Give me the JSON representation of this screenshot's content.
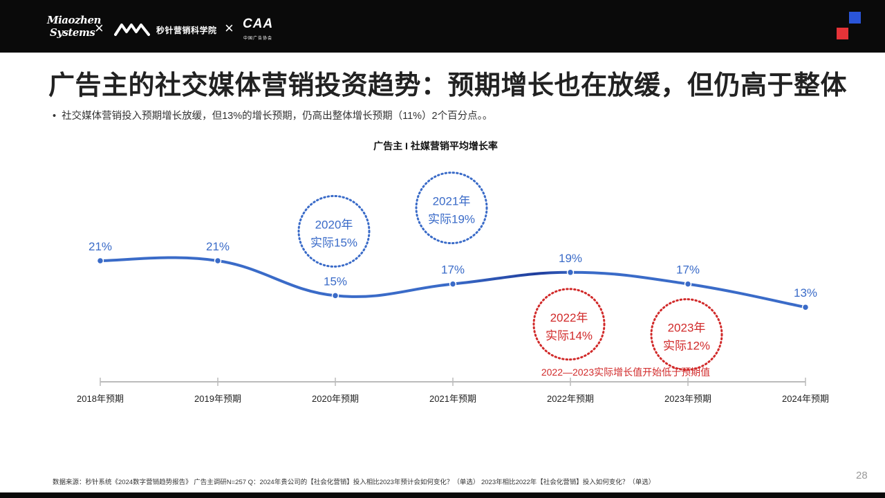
{
  "header": {
    "logo_miaozhen_line1": "Miaozhen",
    "logo_miaozhen_line2": "Systems",
    "separator": "×",
    "logo_academy": "秒针营销科学院",
    "logo_caa": "CAA",
    "logo_caa_sub": "中国广告协会"
  },
  "title": "广告主的社交媒体营销投资趋势：预期增长也在放缓，但仍高于整体",
  "bullet": {
    "marker": "•",
    "text": "社交媒体营销投入预期增长放缓，但13%的增长预期，仍高出整体增长预期（11%）2个百分点。。"
  },
  "chart_data": {
    "type": "line",
    "title": "广告主 I 社媒营销平均增长率",
    "categories": [
      "2018年预期",
      "2019年预期",
      "2020年预期",
      "2021年预期",
      "2022年预期",
      "2023年预期",
      "2024年预期"
    ],
    "series": [
      {
        "values": [
          21,
          21,
          15,
          17,
          19,
          17,
          13
        ],
        "labels": [
          "21%",
          "21%",
          "15%",
          "17%",
          "19%",
          "17%",
          "13%"
        ]
      }
    ],
    "actuals": [
      {
        "category": "2020年预期",
        "year_label": "2020年",
        "value_label": "实际15%",
        "value": 15,
        "color": "#3a6bc8"
      },
      {
        "category": "2021年预期",
        "year_label": "2021年",
        "value_label": "实际19%",
        "value": 19,
        "color": "#3a6bc8"
      },
      {
        "category": "2022年预期",
        "year_label": "2022年",
        "value_label": "实际14%",
        "value": 14,
        "color": "#d12a2a"
      },
      {
        "category": "2023年预期",
        "year_label": "2023年",
        "value_label": "实际12%",
        "value": 12,
        "color": "#d12a2a"
      }
    ],
    "annotation": "2022—2023实际增长值开始低于预期值",
    "colors": {
      "line": "#3a6bc8",
      "line_dark": "#1f3d9c",
      "label": "#3a6bc8",
      "alert": "#d12a2a",
      "axis": "#bbbbbb"
    },
    "grid": false
  },
  "footnote": "数据来源：秒针系统《2024数字营销趋势报告》 广告主调研N=257    Q：2024年贵公司的【社会化营销】投入相比2023年预计会如何变化？（单选）  2023年相比2022年【社会化营销】投入如何变化？（单选）",
  "page_number": "28",
  "colors": {
    "topbar": "#0a0a0a",
    "accent_blue": "#2a55d9",
    "accent_red": "#e53338"
  }
}
